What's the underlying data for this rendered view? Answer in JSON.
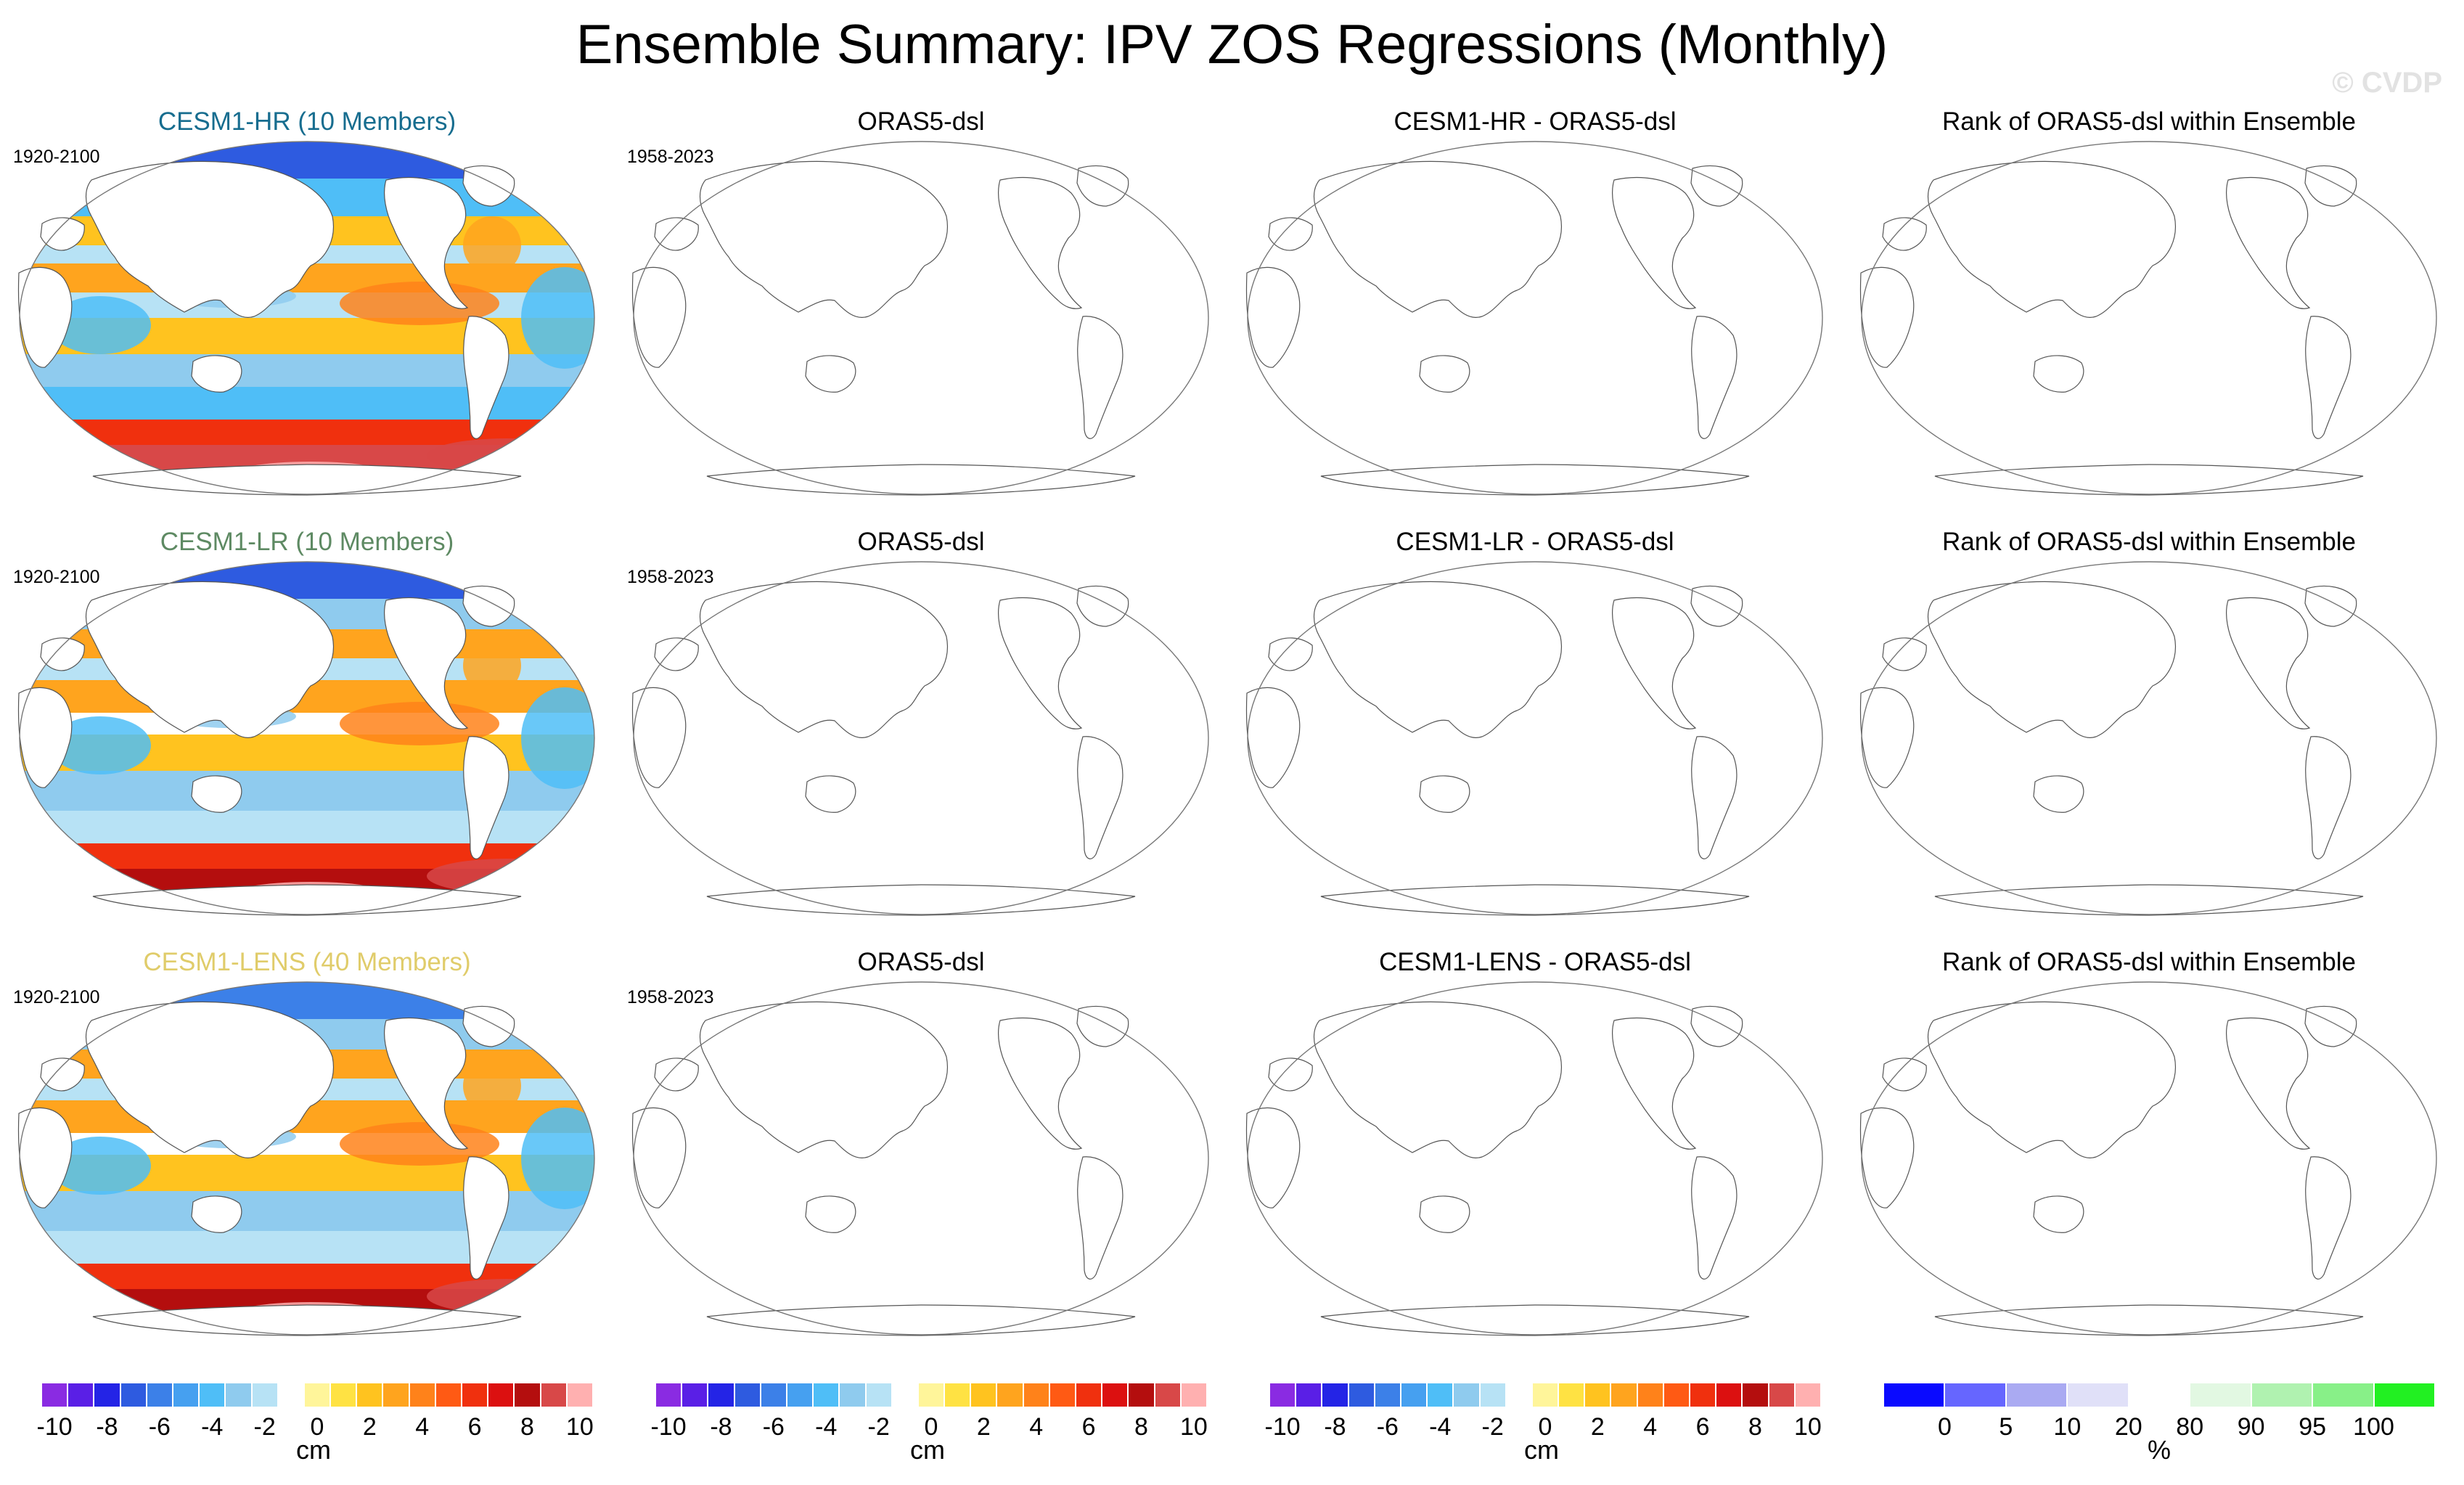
{
  "title": "Ensemble Summary: IPV ZOS Regressions (Monthly)",
  "watermark": "© CVDP",
  "colors": {
    "hr_label": "#176d8f",
    "lr_label": "#5e8a63",
    "lens_label": "#e0cc6a",
    "land": "#ffffff",
    "outline": "#555555"
  },
  "rows": [
    {
      "ensemble": {
        "label": "CESM1-HR (10 Members)",
        "period": "1920-2100"
      },
      "obs": {
        "label": "ORAS5-dsl",
        "period": "1958-2023"
      },
      "diff": {
        "label": "CESM1-HR - ORAS5-dsl"
      },
      "rank": {
        "label": "Rank of ORAS5-dsl within Ensemble"
      }
    },
    {
      "ensemble": {
        "label": "CESM1-LR (10 Members)",
        "period": "1920-2100"
      },
      "obs": {
        "label": "ORAS5-dsl",
        "period": "1958-2023"
      },
      "diff": {
        "label": "CESM1-LR - ORAS5-dsl"
      },
      "rank": {
        "label": "Rank of ORAS5-dsl within Ensemble"
      }
    },
    {
      "ensemble": {
        "label": "CESM1-LENS (40 Members)",
        "period": "1920-2100"
      },
      "obs": {
        "label": "ORAS5-dsl",
        "period": "1958-2023"
      },
      "diff": {
        "label": "CESM1-LENS - ORAS5-dsl"
      },
      "rank": {
        "label": "Rank of ORAS5-dsl within Ensemble"
      }
    }
  ],
  "chart_data": {
    "type": "heatmap",
    "projection": "robinson, centered on the Pacific",
    "title": "Ensemble Summary: IPV ZOS Regressions (Monthly)",
    "variable": "ZOS regression",
    "units": "cm",
    "colorbars": [
      {
        "panel_column": "ensemble",
        "unit": "cm",
        "levels": [
          -10,
          -9,
          -8,
          -7,
          -6,
          -5,
          -4,
          -3,
          -2,
          -1,
          0,
          1,
          2,
          3,
          4,
          5,
          6,
          7,
          8,
          9,
          10
        ],
        "ticks": [
          "-10",
          "-8",
          "-6",
          "-4",
          "-2",
          "0",
          "2",
          "4",
          "6",
          "8",
          "10"
        ],
        "colors": [
          "#8a2be2",
          "#5a1fe6",
          "#2424e6",
          "#2e5be0",
          "#3c80e8",
          "#46a0f0",
          "#4fbef7",
          "#8fcbee",
          "#b7e2f5",
          "#ffffff",
          "#fff59a",
          "#ffe243",
          "#ffc31f",
          "#ffa41e",
          "#ff821a",
          "#ff5a14",
          "#f0300e",
          "#dc1010",
          "#b40e0e",
          "#d84848",
          "#ffb0b0"
        ]
      },
      {
        "panel_column": "obs",
        "unit": "cm",
        "levels": [
          -10,
          -9,
          -8,
          -7,
          -6,
          -5,
          -4,
          -3,
          -2,
          -1,
          0,
          1,
          2,
          3,
          4,
          5,
          6,
          7,
          8,
          9,
          10
        ],
        "ticks": [
          "-10",
          "-8",
          "-6",
          "-4",
          "-2",
          "0",
          "2",
          "4",
          "6",
          "8",
          "10"
        ],
        "colors": [
          "#8a2be2",
          "#5a1fe6",
          "#2424e6",
          "#2e5be0",
          "#3c80e8",
          "#46a0f0",
          "#4fbef7",
          "#8fcbee",
          "#b7e2f5",
          "#ffffff",
          "#fff59a",
          "#ffe243",
          "#ffc31f",
          "#ffa41e",
          "#ff821a",
          "#ff5a14",
          "#f0300e",
          "#dc1010",
          "#b40e0e",
          "#d84848",
          "#ffb0b0"
        ]
      },
      {
        "panel_column": "diff",
        "unit": "cm",
        "levels": [
          -10,
          -9,
          -8,
          -7,
          -6,
          -5,
          -4,
          -3,
          -2,
          -1,
          0,
          1,
          2,
          3,
          4,
          5,
          6,
          7,
          8,
          9,
          10
        ],
        "ticks": [
          "-10",
          "-8",
          "-6",
          "-4",
          "-2",
          "0",
          "2",
          "4",
          "6",
          "8",
          "10"
        ],
        "colors": [
          "#8a2be2",
          "#5a1fe6",
          "#2424e6",
          "#2e5be0",
          "#3c80e8",
          "#46a0f0",
          "#4fbef7",
          "#8fcbee",
          "#b7e2f5",
          "#ffffff",
          "#fff59a",
          "#ffe243",
          "#ffc31f",
          "#ffa41e",
          "#ff821a",
          "#ff5a14",
          "#f0300e",
          "#dc1010",
          "#b40e0e",
          "#d84848",
          "#ffb0b0"
        ]
      },
      {
        "panel_column": "rank",
        "unit": "%",
        "levels": [
          0,
          5,
          10,
          20,
          80,
          90,
          95,
          100
        ],
        "ticks": [
          "0",
          "5",
          "10",
          "20",
          "80",
          "90",
          "95",
          "100"
        ],
        "colors": [
          "#0a0aff",
          "#6666ff",
          "#aaaaf2",
          "#e0e0f8",
          "#ffffff",
          "#e2f8e2",
          "#b0f2b0",
          "#88f088",
          "#22f022"
        ]
      }
    ],
    "panels": [
      {
        "row": 1,
        "column": "ensemble",
        "label": "CESM1-HR (10 Members)",
        "period": "1920-2100",
        "has_data": true,
        "pattern": [
          {
            "region": "tropical Pacific",
            "sign": "positive",
            "approx_cm": 2
          },
          {
            "region": "north Pacific",
            "sign": "negative",
            "approx_cm": -3
          },
          {
            "region": "Indian Ocean",
            "sign": "negative",
            "approx_cm": -3
          },
          {
            "region": "north Atlantic",
            "sign": "positive",
            "approx_cm": 2
          },
          {
            "region": "Southern Ocean",
            "sign": "positive",
            "approx_cm": 9
          }
        ]
      },
      {
        "row": 1,
        "column": "obs",
        "label": "ORAS5-dsl",
        "period": "1958-2023",
        "has_data": false
      },
      {
        "row": 1,
        "column": "diff",
        "label": "CESM1-HR - ORAS5-dsl",
        "has_data": false
      },
      {
        "row": 1,
        "column": "rank",
        "label": "Rank of ORAS5-dsl within Ensemble",
        "has_data": false
      },
      {
        "row": 2,
        "column": "ensemble",
        "label": "CESM1-LR (10 Members)",
        "period": "1920-2100",
        "has_data": true,
        "pattern": [
          {
            "region": "tropical Pacific",
            "sign": "positive",
            "approx_cm": 2
          },
          {
            "region": "north Pacific",
            "sign": "negative",
            "approx_cm": -3
          },
          {
            "region": "Indian Ocean",
            "sign": "negative",
            "approx_cm": -3
          },
          {
            "region": "north Atlantic",
            "sign": "positive",
            "approx_cm": 2
          },
          {
            "region": "Southern Ocean",
            "sign": "positive",
            "approx_cm": 9
          }
        ]
      },
      {
        "row": 2,
        "column": "obs",
        "label": "ORAS5-dsl",
        "period": "1958-2023",
        "has_data": false
      },
      {
        "row": 2,
        "column": "diff",
        "label": "CESM1-LR - ORAS5-dsl",
        "has_data": false
      },
      {
        "row": 2,
        "column": "rank",
        "label": "Rank of ORAS5-dsl within Ensemble",
        "has_data": false
      },
      {
        "row": 3,
        "column": "ensemble",
        "label": "CESM1-LENS (40 Members)",
        "period": "1920-2100",
        "has_data": true,
        "pattern": [
          {
            "region": "tropical Pacific",
            "sign": "positive",
            "approx_cm": 2
          },
          {
            "region": "north Pacific",
            "sign": "negative",
            "approx_cm": -3
          },
          {
            "region": "Indian Ocean",
            "sign": "negative",
            "approx_cm": -3
          },
          {
            "region": "north Atlantic",
            "sign": "positive",
            "approx_cm": 2
          },
          {
            "region": "Southern Ocean",
            "sign": "positive",
            "approx_cm": 8
          }
        ]
      },
      {
        "row": 3,
        "column": "obs",
        "label": "ORAS5-dsl",
        "period": "1958-2023",
        "has_data": false
      },
      {
        "row": 3,
        "column": "diff",
        "label": "CESM1-LENS - ORAS5-dsl",
        "has_data": false
      },
      {
        "row": 3,
        "column": "rank",
        "label": "Rank of ORAS5-dsl within Ensemble",
        "has_data": false
      }
    ]
  }
}
